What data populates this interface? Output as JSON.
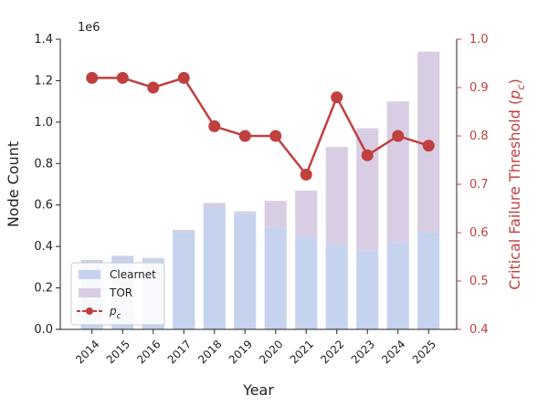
{
  "chart_data": {
    "type": "bar-line",
    "x_label": "Year",
    "y_label": "Node Count",
    "y_offset_label": "1e6",
    "y2_label": "Critical Failure Threshold (p_c)",
    "categories": [
      "2014",
      "2015",
      "2016",
      "2017",
      "2018",
      "2019",
      "2020",
      "2021",
      "2022",
      "2023",
      "2024",
      "2025"
    ],
    "series": [
      {
        "name": "Clearnet",
        "kind": "bar",
        "color": "#c5d3ee",
        "values": [
          0.33,
          0.35,
          0.34,
          0.47,
          0.59,
          0.56,
          0.49,
          0.45,
          0.41,
          0.38,
          0.42,
          0.47
        ]
      },
      {
        "name": "TOR",
        "kind": "bar",
        "color": "#d9cde4",
        "values": [
          0.005,
          0.005,
          0.005,
          0.01,
          0.02,
          0.01,
          0.13,
          0.22,
          0.47,
          0.59,
          0.68,
          0.87
        ]
      },
      {
        "name": "p_c",
        "kind": "line",
        "axis": "y2",
        "color": "#c0403f",
        "values": [
          0.92,
          0.92,
          0.9,
          0.92,
          0.82,
          0.8,
          0.8,
          0.72,
          0.88,
          0.76,
          0.8,
          0.78
        ]
      }
    ],
    "ylim": [
      0,
      1.4
    ],
    "yticks": [
      {
        "value": 0,
        "label": "0.0"
      },
      0.2,
      0.4,
      0.6,
      0.8,
      {
        "value": 1,
        "label": "1.0"
      },
      1.2,
      1.4
    ],
    "y2lim": [
      0.4,
      1.0
    ],
    "y2ticks": [
      0.4,
      0.5,
      0.6,
      0.7,
      0.8,
      0.9,
      {
        "value": 1,
        "label": "1.0"
      }
    ],
    "legend": "lower left"
  }
}
